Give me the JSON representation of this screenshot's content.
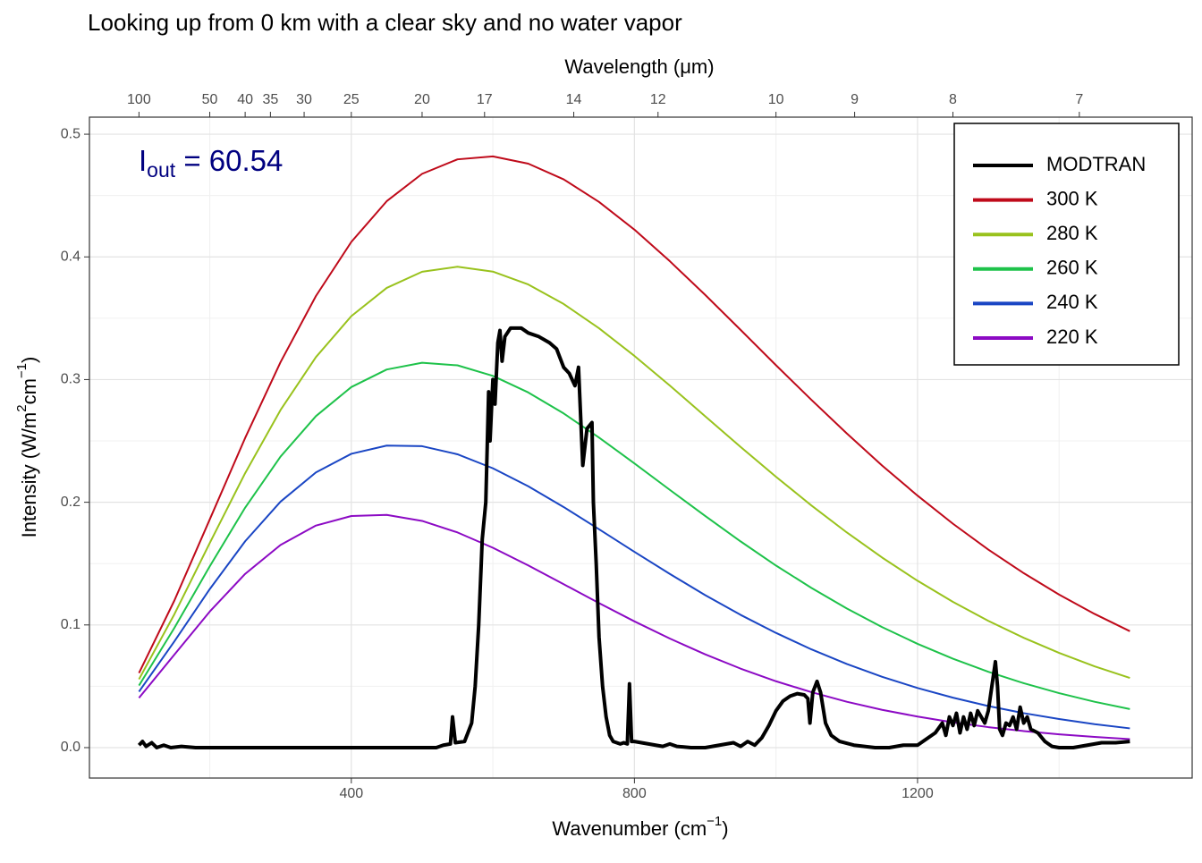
{
  "chart_data": {
    "type": "line",
    "title": "Looking up from 0 km with a clear sky and no water vapor",
    "xlabel": [
      "Wavenumber (cm",
      "−1",
      ")"
    ],
    "ylabel": [
      "Intensity (W/m",
      "2",
      "cm",
      "−1",
      ")"
    ],
    "x2label": "Wavelength (μm)",
    "annotation": {
      "main": "I",
      "sub": "out",
      "rest": " = 60.54"
    },
    "xlim": [
      30,
      1588
    ],
    "ylim": [
      -0.0248,
      0.5139
    ],
    "xticks": [
      400,
      800,
      1200
    ],
    "xminor": [
      200,
      600,
      1000,
      1400
    ],
    "yticks": [
      {
        "value": 0,
        "label": "0.0"
      },
      0.1,
      0.2,
      0.3,
      0.4,
      0.5
    ],
    "yminor": [
      0.05,
      0.15,
      0.25,
      0.35,
      0.45
    ],
    "x2ticks": [
      100,
      50,
      40,
      35,
      30,
      25,
      20,
      17,
      14,
      12,
      10,
      9,
      8,
      7
    ],
    "grid": true,
    "legend": "top-right",
    "x": [
      100,
      150,
      200,
      250,
      300,
      350,
      400,
      450,
      500,
      550,
      600,
      650,
      700,
      750,
      800,
      850,
      900,
      950,
      1000,
      1050,
      1100,
      1150,
      1200,
      1250,
      1300,
      1350,
      1400,
      1450,
      1500
    ],
    "series": [
      {
        "name": "MODTRAN",
        "color": "#000000",
        "x": [
          100,
          105,
          110,
          118,
          125,
          135,
          145,
          160,
          180,
          250,
          350,
          450,
          520,
          530,
          540,
          543,
          547,
          560,
          570,
          575,
          580,
          585,
          590,
          594,
          596,
          600,
          603,
          607,
          610,
          613,
          617,
          625,
          640,
          650,
          665,
          680,
          690,
          700,
          708,
          716,
          721,
          727,
          733,
          740,
          742,
          746,
          750,
          755,
          760,
          765,
          770,
          780,
          785,
          790,
          793,
          796,
          800,
          820,
          840,
          850,
          860,
          880,
          900,
          920,
          940,
          950,
          960,
          970,
          980,
          990,
          1000,
          1010,
          1020,
          1030,
          1040,
          1045,
          1048,
          1052,
          1058,
          1063,
          1070,
          1078,
          1090,
          1110,
          1140,
          1160,
          1180,
          1200,
          1215,
          1225,
          1235,
          1240,
          1245,
          1250,
          1255,
          1260,
          1265,
          1270,
          1275,
          1280,
          1285,
          1290,
          1295,
          1300,
          1305,
          1310,
          1313,
          1316,
          1320,
          1325,
          1330,
          1335,
          1340,
          1345,
          1350,
          1355,
          1360,
          1370,
          1380,
          1390,
          1400,
          1420,
          1440,
          1460,
          1480,
          1500
        ],
        "values": [
          0.002,
          0.005,
          0.001,
          0.004,
          0.0,
          0.002,
          0.0,
          0.001,
          0.0,
          0.0,
          0.0,
          0.0,
          0.0,
          0.002,
          0.003,
          0.025,
          0.004,
          0.005,
          0.02,
          0.05,
          0.1,
          0.17,
          0.2,
          0.29,
          0.25,
          0.3,
          0.28,
          0.33,
          0.34,
          0.315,
          0.335,
          0.342,
          0.342,
          0.338,
          0.335,
          0.33,
          0.325,
          0.31,
          0.305,
          0.295,
          0.31,
          0.23,
          0.26,
          0.265,
          0.2,
          0.15,
          0.09,
          0.05,
          0.025,
          0.01,
          0.005,
          0.003,
          0.004,
          0.003,
          0.052,
          0.005,
          0.005,
          0.003,
          0.001,
          0.003,
          0.001,
          0.0,
          0.0,
          0.002,
          0.004,
          0.001,
          0.005,
          0.002,
          0.008,
          0.018,
          0.03,
          0.038,
          0.042,
          0.044,
          0.043,
          0.04,
          0.02,
          0.045,
          0.054,
          0.045,
          0.02,
          0.01,
          0.005,
          0.002,
          0.0,
          0.0,
          0.002,
          0.002,
          0.008,
          0.012,
          0.02,
          0.01,
          0.025,
          0.018,
          0.028,
          0.012,
          0.025,
          0.015,
          0.028,
          0.018,
          0.03,
          0.025,
          0.02,
          0.03,
          0.05,
          0.07,
          0.05,
          0.015,
          0.01,
          0.02,
          0.018,
          0.025,
          0.015,
          0.033,
          0.02,
          0.025,
          0.015,
          0.012,
          0.005,
          0.001,
          0.0,
          0.0,
          0.002,
          0.004,
          0.004,
          0.005
        ]
      },
      {
        "name": "300 K",
        "color": "#bf0a1a",
        "values": [
          0.0608,
          0.1199,
          0.186,
          0.2524,
          0.3142,
          0.3681,
          0.4122,
          0.4454,
          0.4677,
          0.4795,
          0.4819,
          0.476,
          0.4632,
          0.4448,
          0.4222,
          0.3965,
          0.369,
          0.3405,
          0.3117,
          0.2835,
          0.2561,
          0.2299,
          0.2054,
          0.1825,
          0.1614,
          0.1422,
          0.1247,
          0.109,
          0.0949
        ]
      },
      {
        "name": "280 K",
        "color": "#99c21d",
        "values": [
          0.0557,
          0.1087,
          0.1668,
          0.2237,
          0.2752,
          0.3183,
          0.3517,
          0.3747,
          0.3879,
          0.392,
          0.388,
          0.3775,
          0.3616,
          0.3418,
          0.3193,
          0.2951,
          0.2701,
          0.2451,
          0.2208,
          0.1974,
          0.1754,
          0.1549,
          0.136,
          0.1188,
          0.1033,
          0.0895,
          0.0772,
          0.0663,
          0.0568
        ]
      },
      {
        "name": "260 K",
        "color": "#1ec24a",
        "values": [
          0.0506,
          0.0976,
          0.1478,
          0.1956,
          0.2372,
          0.2702,
          0.2939,
          0.3082,
          0.3137,
          0.3116,
          0.303,
          0.2895,
          0.2724,
          0.2527,
          0.2317,
          0.2101,
          0.1888,
          0.1681,
          0.1484,
          0.1302,
          0.1134,
          0.0982,
          0.0846,
          0.0725,
          0.0618,
          0.0525,
          0.0444,
          0.0374,
          0.0314
        ]
      },
      {
        "name": "240 K",
        "color": "#1a46c4",
        "values": [
          0.0456,
          0.0866,
          0.1292,
          0.1682,
          0.2005,
          0.2243,
          0.2395,
          0.2462,
          0.2457,
          0.2391,
          0.2277,
          0.213,
          0.1961,
          0.178,
          0.1596,
          0.1416,
          0.1243,
          0.1082,
          0.0935,
          0.0801,
          0.0682,
          0.0577,
          0.0486,
          0.0407,
          0.0339,
          0.0281,
          0.0233,
          0.0191,
          0.0157
        ]
      },
      {
        "name": "220 K",
        "color": "#8c0ac4",
        "values": [
          0.0405,
          0.0758,
          0.1109,
          0.1416,
          0.1652,
          0.181,
          0.1888,
          0.1897,
          0.1848,
          0.1754,
          0.1629,
          0.1485,
          0.1332,
          0.1178,
          0.1029,
          0.0889,
          0.076,
          0.0644,
          0.0541,
          0.0452,
          0.0374,
          0.0308,
          0.0253,
          0.0206,
          0.0167,
          0.0135,
          0.0108,
          0.0087,
          0.0069
        ]
      }
    ]
  }
}
